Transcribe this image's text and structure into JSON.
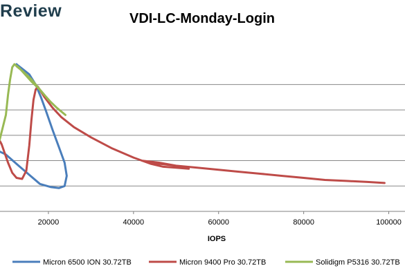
{
  "brand": "Review",
  "chart_data": {
    "type": "line",
    "title": "VDI-LC-Monday-Login",
    "xlabel": "IOPS",
    "ylabel": "",
    "xlim": [
      7000,
      104000
    ],
    "ylim": [
      0,
      1.45
    ],
    "xticks": [
      20000,
      40000,
      60000,
      80000,
      100000
    ],
    "ytick_gridlines": [
      0.25,
      0.5,
      0.75,
      1.0,
      1.25
    ],
    "grid": true,
    "legend": "bottom",
    "series": [
      {
        "name": "Micron 6500 ION 30.72TB",
        "color": "#4a7ebb",
        "points": [
          [
            7000,
            0.62
          ],
          [
            10000,
            0.56
          ],
          [
            13000,
            0.45
          ],
          [
            15500,
            0.36
          ],
          [
            18000,
            0.27
          ],
          [
            20500,
            0.24
          ],
          [
            22500,
            0.23
          ],
          [
            23800,
            0.25
          ],
          [
            24300,
            0.35
          ],
          [
            23800,
            0.48
          ],
          [
            22500,
            0.63
          ],
          [
            21000,
            0.8
          ],
          [
            19500,
            0.98
          ],
          [
            18200,
            1.13
          ],
          [
            17000,
            1.25
          ],
          [
            15500,
            1.35
          ],
          [
            14000,
            1.4
          ],
          [
            12800,
            1.44
          ],
          [
            12500,
            1.45
          ]
        ]
      },
      {
        "name": "Micron 9400 Pro 30.72TB",
        "color": "#be4b48",
        "points": [
          [
            7000,
            0.82
          ],
          [
            9000,
            0.66
          ],
          [
            10500,
            0.48
          ],
          [
            11500,
            0.38
          ],
          [
            12500,
            0.33
          ],
          [
            13800,
            0.32
          ],
          [
            14800,
            0.4
          ],
          [
            15500,
            0.65
          ],
          [
            16000,
            0.9
          ],
          [
            16500,
            1.1
          ],
          [
            17000,
            1.2
          ],
          [
            17500,
            1.23
          ],
          [
            19000,
            1.13
          ],
          [
            21000,
            1.02
          ],
          [
            23000,
            0.93
          ],
          [
            26000,
            0.83
          ],
          [
            30000,
            0.73
          ],
          [
            35000,
            0.62
          ],
          [
            40000,
            0.53
          ],
          [
            44000,
            0.47
          ],
          [
            47000,
            0.44
          ],
          [
            50000,
            0.43
          ],
          [
            53000,
            0.42
          ],
          [
            50000,
            0.45
          ],
          [
            46000,
            0.48
          ],
          [
            42000,
            0.5
          ],
          [
            46000,
            0.47
          ],
          [
            50000,
            0.45
          ],
          [
            55000,
            0.43
          ],
          [
            60000,
            0.41
          ],
          [
            65000,
            0.39
          ],
          [
            70000,
            0.37
          ],
          [
            75000,
            0.35
          ],
          [
            80000,
            0.33
          ],
          [
            85000,
            0.31
          ],
          [
            90000,
            0.3
          ],
          [
            95000,
            0.29
          ],
          [
            99000,
            0.28
          ]
        ]
      },
      {
        "name": "Solidigm P5316 30.72TB",
        "color": "#98b954",
        "points": [
          [
            7000,
            0.6
          ],
          [
            8500,
            0.7
          ],
          [
            10000,
            0.95
          ],
          [
            10500,
            1.15
          ],
          [
            11000,
            1.3
          ],
          [
            11500,
            1.42
          ],
          [
            12000,
            1.45
          ],
          [
            13000,
            1.42
          ],
          [
            14500,
            1.35
          ],
          [
            16000,
            1.28
          ],
          [
            17500,
            1.22
          ],
          [
            19000,
            1.15
          ],
          [
            20500,
            1.08
          ],
          [
            22000,
            1.02
          ],
          [
            24000,
            0.95
          ],
          [
            22000,
            1.02
          ],
          [
            20000,
            1.1
          ],
          [
            18000,
            1.2
          ],
          [
            16000,
            1.3
          ],
          [
            14000,
            1.38
          ],
          [
            12500,
            1.43
          ]
        ]
      }
    ]
  }
}
